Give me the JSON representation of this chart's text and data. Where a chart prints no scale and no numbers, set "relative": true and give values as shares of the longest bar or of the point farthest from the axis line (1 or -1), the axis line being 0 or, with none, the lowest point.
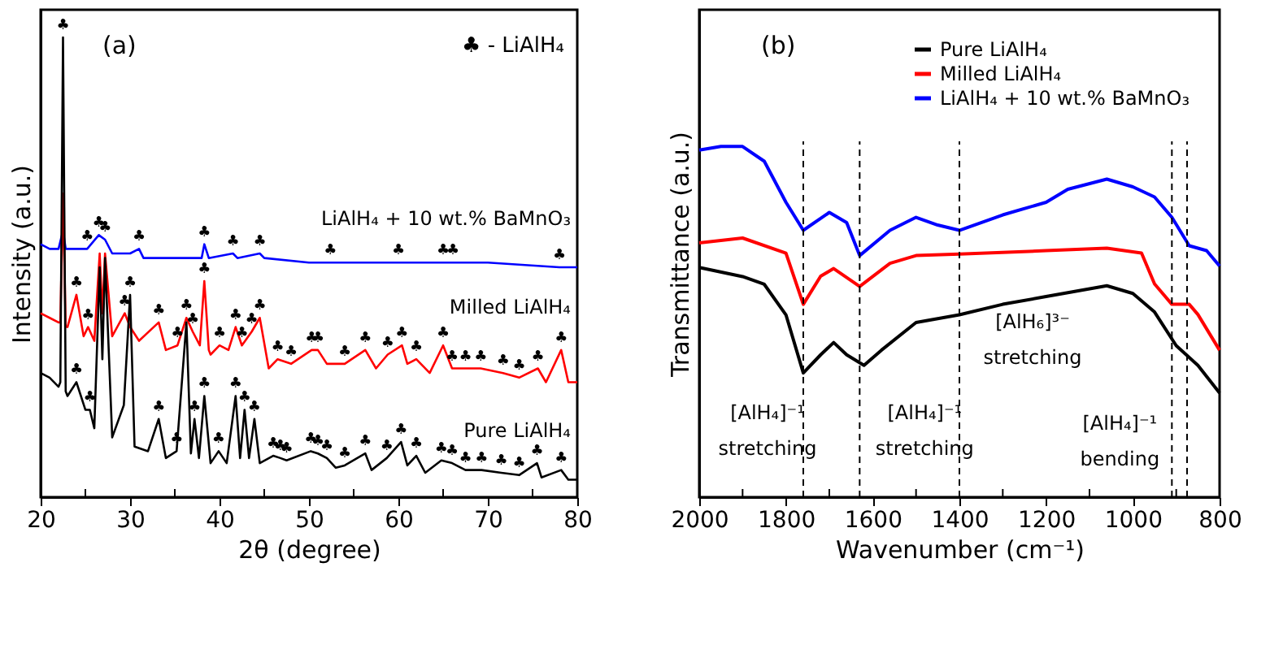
{
  "chart_data": [
    {
      "type": "line",
      "relative": true,
      "xlabel": "2θ (degree)",
      "ylabel": "Intensity (a.u.)",
      "xlim": [
        20,
        80
      ],
      "xticks": [
        20,
        {
          "value": 25,
          "label": null
        },
        30,
        {
          "value": 35,
          "label": null
        },
        40,
        {
          "value": 45,
          "label": null
        },
        50,
        {
          "value": 55,
          "label": null
        },
        60,
        {
          "value": 65,
          "label": null
        },
        70,
        {
          "value": 75,
          "label": null
        },
        80
      ],
      "legend": false,
      "series": [
        {
          "name": "Pure LiAlH₄",
          "color": "#000000",
          "x": [
            20,
            21,
            22,
            22.2,
            22.5,
            22.8,
            23,
            24,
            25,
            25.5,
            26,
            26.6,
            26.9,
            27.2,
            28,
            29.3,
            30,
            30.5,
            32,
            33.2,
            34,
            35.2,
            36.3,
            36.8,
            37.2,
            37.7,
            38.3,
            39,
            39.9,
            40.8,
            41.8,
            42.3,
            42.8,
            43.3,
            43.9,
            44.5,
            46,
            46.8,
            47.5,
            50.2,
            51,
            52,
            53,
            54,
            56.3,
            57,
            58.7,
            60.3,
            61,
            62,
            63,
            64.8,
            66,
            67.5,
            69.3,
            71.5,
            73.5,
            75.5,
            76,
            78.2,
            79,
            80
          ],
          "values": [
            0.27,
            0.26,
            0.24,
            0.25,
            1.0,
            0.23,
            0.22,
            0.25,
            0.19,
            0.19,
            0.15,
            0.5,
            0.3,
            0.52,
            0.13,
            0.2,
            0.44,
            0.11,
            0.1,
            0.17,
            0.085,
            0.1,
            0.38,
            0.095,
            0.17,
            0.085,
            0.22,
            0.074,
            0.1,
            0.074,
            0.22,
            0.085,
            0.19,
            0.085,
            0.17,
            0.074,
            0.09,
            0.085,
            0.08,
            0.1,
            0.095,
            0.085,
            0.064,
            0.069,
            0.095,
            0.059,
            0.085,
            0.12,
            0.069,
            0.09,
            0.053,
            0.08,
            0.074,
            0.059,
            0.059,
            0.053,
            0.048,
            0.074,
            0.043,
            0.059,
            0.038,
            0.038
          ]
        },
        {
          "name": "Milled LiAlH₄",
          "color": "#ff0000",
          "x": [
            20,
            21,
            22,
            22.2,
            22.5,
            22.8,
            23,
            24,
            24.8,
            25.3,
            26,
            26.6,
            26.9,
            27.2,
            28,
            29.4,
            30,
            31,
            33.2,
            34,
            35.3,
            36.3,
            37,
            37.8,
            38.3,
            38.8,
            39,
            40,
            41,
            41.8,
            42.5,
            43.6,
            44.5,
            45.5,
            46.5,
            48,
            50.3,
            51,
            52,
            54,
            56.3,
            57.5,
            58.8,
            60.4,
            61,
            62,
            63.5,
            65,
            66,
            67.5,
            69.2,
            71.7,
            73.5,
            75.6,
            76.5,
            78.2,
            79,
            80
          ],
          "values": [
            0.4,
            0.39,
            0.38,
            0.38,
            0.66,
            0.37,
            0.37,
            0.44,
            0.35,
            0.37,
            0.34,
            0.53,
            0.4,
            0.53,
            0.35,
            0.4,
            0.37,
            0.34,
            0.38,
            0.32,
            0.33,
            0.39,
            0.36,
            0.33,
            0.47,
            0.32,
            0.31,
            0.33,
            0.32,
            0.37,
            0.33,
            0.36,
            0.39,
            0.28,
            0.3,
            0.29,
            0.32,
            0.32,
            0.29,
            0.29,
            0.32,
            0.28,
            0.31,
            0.33,
            0.29,
            0.3,
            0.27,
            0.33,
            0.28,
            0.28,
            0.28,
            0.27,
            0.26,
            0.28,
            0.25,
            0.32,
            0.25,
            0.25
          ]
        },
        {
          "name": "LiAlH₄ + 10 wt.% BaMnO₃",
          "color": "#0000ff",
          "x": [
            20,
            21,
            22,
            22.5,
            22.8,
            24,
            25.2,
            26.5,
            27.2,
            28,
            30,
            31,
            31.5,
            33,
            38,
            38.3,
            38.8,
            41.5,
            42,
            44.5,
            45,
            50,
            52.4,
            60,
            65,
            66.1,
            70,
            78,
            80
          ],
          "values": [
            0.55,
            0.54,
            0.54,
            0.58,
            0.54,
            0.54,
            0.54,
            0.57,
            0.56,
            0.53,
            0.53,
            0.54,
            0.52,
            0.52,
            0.52,
            0.55,
            0.52,
            0.53,
            0.52,
            0.53,
            0.52,
            0.51,
            0.51,
            0.51,
            0.51,
            0.51,
            0.51,
            0.5,
            0.5
          ]
        }
      ],
      "annotations": [
        "(a)",
        "♣ - LiAlH₄",
        {
          "text": "♣",
          "x": 25.2,
          "y": 0.54
        },
        {
          "text": "♣",
          "x": 26.5,
          "y": 0.57
        },
        {
          "text": "♣",
          "x": 27.2,
          "y": 0.56
        },
        {
          "text": "♣",
          "x": 31,
          "y": 0.54
        },
        {
          "text": "♣",
          "x": 38.3,
          "y": 0.55
        },
        {
          "text": "♣",
          "x": 41.5,
          "y": 0.53
        },
        {
          "text": "♣",
          "x": 44.5,
          "y": 0.53
        },
        {
          "text": "♣",
          "x": 52.4,
          "y": 0.51
        },
        {
          "text": "♣",
          "x": 60,
          "y": 0.51
        },
        {
          "text": "♣",
          "x": 65,
          "y": 0.51
        },
        {
          "text": "♣",
          "x": 66.1,
          "y": 0.51
        },
        {
          "text": "♣",
          "x": 78,
          "y": 0.5
        },
        {
          "text": "♣",
          "x": 24,
          "y": 0.44
        },
        {
          "text": "♣",
          "x": 25.3,
          "y": 0.37
        },
        {
          "text": "♣",
          "x": 29.4,
          "y": 0.4
        },
        {
          "text": "♣",
          "x": 33.2,
          "y": 0.38
        },
        {
          "text": "♣",
          "x": 35.3,
          "y": 0.33
        },
        {
          "text": "♣",
          "x": 36.3,
          "y": 0.39
        },
        {
          "text": "♣",
          "x": 37,
          "y": 0.36
        },
        {
          "text": "♣",
          "x": 38.3,
          "y": 0.47
        },
        {
          "text": "♣",
          "x": 40,
          "y": 0.33
        },
        {
          "text": "♣",
          "x": 41.8,
          "y": 0.37
        },
        {
          "text": "♣",
          "x": 42.5,
          "y": 0.33
        },
        {
          "text": "♣",
          "x": 43.6,
          "y": 0.36
        },
        {
          "text": "♣",
          "x": 44.5,
          "y": 0.39
        },
        {
          "text": "♣",
          "x": 46.5,
          "y": 0.3
        },
        {
          "text": "♣",
          "x": 48,
          "y": 0.29
        },
        {
          "text": "♣",
          "x": 50.3,
          "y": 0.32
        },
        {
          "text": "♣",
          "x": 51,
          "y": 0.32
        },
        {
          "text": "♣",
          "x": 54,
          "y": 0.29
        },
        {
          "text": "♣",
          "x": 56.3,
          "y": 0.32
        },
        {
          "text": "♣",
          "x": 58.8,
          "y": 0.31
        },
        {
          "text": "♣",
          "x": 60.4,
          "y": 0.33
        },
        {
          "text": "♣",
          "x": 62,
          "y": 0.3
        },
        {
          "text": "♣",
          "x": 65,
          "y": 0.33
        },
        {
          "text": "♣",
          "x": 66,
          "y": 0.28
        },
        {
          "text": "♣",
          "x": 67.5,
          "y": 0.28
        },
        {
          "text": "♣",
          "x": 69.2,
          "y": 0.28
        },
        {
          "text": "♣",
          "x": 71.7,
          "y": 0.27
        },
        {
          "text": "♣",
          "x": 73.5,
          "y": 0.26
        },
        {
          "text": "♣",
          "x": 75.6,
          "y": 0.28
        },
        {
          "text": "♣",
          "x": 78.2,
          "y": 0.32
        },
        {
          "text": "♣",
          "x": 22.5,
          "y": 1.0
        },
        {
          "text": "♣",
          "x": 24,
          "y": 0.25
        },
        {
          "text": "♣",
          "x": 25.5,
          "y": 0.19
        },
        {
          "text": "♣",
          "x": 30,
          "y": 0.44
        },
        {
          "text": "♣",
          "x": 33.2,
          "y": 0.17
        },
        {
          "text": "♣",
          "x": 35.2,
          "y": 0.1
        },
        {
          "text": "♣",
          "x": 37.2,
          "y": 0.17
        },
        {
          "text": "♣",
          "x": 38.3,
          "y": 0.22
        },
        {
          "text": "♣",
          "x": 39.9,
          "y": 0.1
        },
        {
          "text": "♣",
          "x": 41.8,
          "y": 0.22
        },
        {
          "text": "♣",
          "x": 42.8,
          "y": 0.19
        },
        {
          "text": "♣",
          "x": 43.9,
          "y": 0.17
        },
        {
          "text": "♣",
          "x": 46,
          "y": 0.09
        },
        {
          "text": "♣",
          "x": 46.8,
          "y": 0.085
        },
        {
          "text": "♣",
          "x": 47.5,
          "y": 0.08
        },
        {
          "text": "♣",
          "x": 50.2,
          "y": 0.1
        },
        {
          "text": "♣",
          "x": 51,
          "y": 0.095
        },
        {
          "text": "♣",
          "x": 52,
          "y": 0.085
        },
        {
          "text": "♣",
          "x": 54,
          "y": 0.069
        },
        {
          "text": "♣",
          "x": 56.3,
          "y": 0.095
        },
        {
          "text": "♣",
          "x": 58.7,
          "y": 0.085
        },
        {
          "text": "♣",
          "x": 60.3,
          "y": 0.12
        },
        {
          "text": "♣",
          "x": 62,
          "y": 0.09
        },
        {
          "text": "♣",
          "x": 64.8,
          "y": 0.08
        },
        {
          "text": "♣",
          "x": 66,
          "y": 0.074
        },
        {
          "text": "♣",
          "x": 67.5,
          "y": 0.059
        },
        {
          "text": "♣",
          "x": 69.3,
          "y": 0.059
        },
        {
          "text": "♣",
          "x": 71.5,
          "y": 0.053
        },
        {
          "text": "♣",
          "x": 73.5,
          "y": 0.048
        },
        {
          "text": "♣",
          "x": 75.5,
          "y": 0.074
        },
        {
          "text": "♣",
          "x": 78.2,
          "y": 0.059
        }
      ]
    },
    {
      "type": "line",
      "relative": true,
      "xlabel": "Wavenumber (cm⁻¹)",
      "ylabel": "Transmittance (a.u.)",
      "xlim": [
        2000,
        800
      ],
      "xticks": [
        2000,
        {
          "value": 1900,
          "label": null
        },
        1800,
        {
          "value": 1700,
          "label": null
        },
        1600,
        {
          "value": 1500,
          "label": null
        },
        1400,
        {
          "value": 1300,
          "label": null
        },
        1200,
        {
          "value": 1100,
          "label": null
        },
        1000,
        {
          "value": 900,
          "label": null
        },
        800
      ],
      "legend": "top right",
      "series": [
        {
          "name": "Pure LiAlH₄",
          "color": "#000000",
          "x": [
            2000,
            1900,
            1850,
            1800,
            1760,
            1720,
            1690,
            1660,
            1620,
            1580,
            1500,
            1400,
            1300,
            1200,
            1060,
            1000,
            950,
            900,
            850,
            800
          ],
          "values": [
            0.655,
            0.629,
            0.607,
            0.52,
            0.354,
            0.406,
            0.441,
            0.406,
            0.376,
            0.419,
            0.498,
            0.52,
            0.55,
            0.572,
            0.603,
            0.581,
            0.528,
            0.432,
            0.376,
            0.297
          ]
        },
        {
          "name": "Milled LiAlH₄",
          "color": "#ff0000",
          "x": [
            2000,
            1900,
            1800,
            1760,
            1720,
            1690,
            1630,
            1560,
            1500,
            1400,
            1200,
            1060,
            980,
            950,
            910,
            870,
            850,
            800
          ],
          "values": [
            0.725,
            0.739,
            0.696,
            0.55,
            0.63,
            0.652,
            0.601,
            0.667,
            0.689,
            0.693,
            0.703,
            0.71,
            0.696,
            0.608,
            0.55,
            0.55,
            0.521,
            0.419
          ]
        },
        {
          "name": "LiAlH₄ + 10 wt.% BaMnO₃",
          "color": "#0000ff",
          "x": [
            2000,
            1950,
            1900,
            1850,
            1800,
            1760,
            1700,
            1660,
            1630,
            1560,
            1500,
            1450,
            1400,
            1300,
            1200,
            1150,
            1060,
            1000,
            950,
            910,
            870,
            830,
            800
          ],
          "values": [
            0.99,
            1.0,
            1.0,
            0.958,
            0.841,
            0.761,
            0.812,
            0.783,
            0.689,
            0.761,
            0.798,
            0.776,
            0.761,
            0.805,
            0.841,
            0.878,
            0.907,
            0.885,
            0.856,
            0.798,
            0.717,
            0.703,
            0.659
          ]
        }
      ],
      "ref_lines": [
        {
          "axis": "x",
          "value": 1760,
          "line_style": "dashed"
        },
        {
          "axis": "x",
          "value": 1630,
          "line_style": "dashed"
        },
        {
          "axis": "x",
          "value": 1400,
          "line_style": "dashed"
        },
        {
          "axis": "x",
          "value": 910,
          "line_style": "dashed"
        },
        {
          "axis": "x",
          "value": 875,
          "line_style": "dashed"
        }
      ],
      "annotations": [
        "(b)",
        {
          "text": "[AlH₄]⁻¹ stretching",
          "x": 1760,
          "y": 0.24
        },
        {
          "text": "[AlH₄]⁻¹ stretching",
          "x": 1630,
          "y": 0.24
        },
        {
          "text": "[AlH₆]³⁻ stretching",
          "x": 1400,
          "y": 0.5
        },
        {
          "text": "[AlH₄]⁻¹ bending",
          "x": 910,
          "y": 0.21
        }
      ]
    }
  ]
}
